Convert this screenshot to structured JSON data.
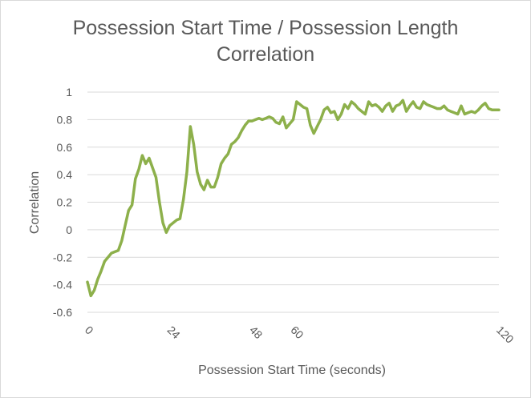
{
  "chart_data": {
    "type": "line",
    "title_line1": "Possession  Start  Time  /  Possession  Length",
    "title_line2": "Correlation",
    "xlabel": "Possession Start Time (seconds)",
    "ylabel": "Correlation",
    "xlim": [
      0,
      120
    ],
    "ylim": [
      -0.6,
      1
    ],
    "y_ticks": [
      "1",
      "0.8",
      "0.6",
      "0.4",
      "0.2",
      "0",
      "-0.2",
      "-0.4",
      "-0.6"
    ],
    "y_tick_values": [
      1,
      0.8,
      0.6,
      0.4,
      0.2,
      0,
      -0.2,
      -0.4,
      -0.6
    ],
    "x_ticks": [
      "0",
      "24",
      "48",
      "60",
      "120"
    ],
    "x_tick_values": [
      0,
      24,
      48,
      60,
      120
    ],
    "grid": "horizontal",
    "legend": "none",
    "series_color": "#8db04b",
    "grid_color": "#d9d9d9",
    "text_color": "#595959",
    "series": [
      {
        "x": [
          0,
          1,
          2,
          3,
          4,
          5,
          6,
          7,
          8,
          9,
          10,
          11,
          12,
          13,
          14,
          15,
          16,
          17,
          18,
          19,
          20,
          21,
          22,
          23,
          24,
          25,
          26,
          27,
          28,
          29,
          30,
          31,
          32,
          33,
          34,
          35,
          36,
          37,
          38,
          39,
          40,
          41,
          42,
          43,
          44,
          45,
          46,
          47,
          48,
          49,
          50,
          51,
          52,
          53,
          54,
          55,
          56,
          57,
          58,
          59,
          60,
          61,
          62,
          63,
          64,
          65,
          66,
          67,
          68,
          69,
          70,
          71,
          72,
          73,
          74,
          75,
          76,
          77,
          78,
          79,
          80,
          81,
          82,
          83,
          84,
          85,
          86,
          87,
          88,
          89,
          90,
          91,
          92,
          93,
          94,
          95,
          96,
          97,
          98,
          99,
          100,
          101,
          102,
          103,
          104,
          105,
          106,
          107,
          108,
          109,
          110,
          111,
          112,
          113,
          114,
          115,
          116,
          117,
          118,
          119,
          120
        ],
        "values": [
          -0.38,
          -0.48,
          -0.44,
          -0.36,
          -0.3,
          -0.23,
          -0.2,
          -0.17,
          -0.16,
          -0.15,
          -0.08,
          0.03,
          0.14,
          0.18,
          0.37,
          0.44,
          0.54,
          0.48,
          0.52,
          0.45,
          0.38,
          0.2,
          0.05,
          -0.02,
          0.03,
          0.05,
          0.07,
          0.08,
          0.22,
          0.42,
          0.75,
          0.62,
          0.42,
          0.33,
          0.29,
          0.36,
          0.31,
          0.31,
          0.38,
          0.48,
          0.52,
          0.55,
          0.62,
          0.64,
          0.67,
          0.72,
          0.76,
          0.79,
          0.79,
          0.8,
          0.81,
          0.8,
          0.81,
          0.82,
          0.81,
          0.78,
          0.77,
          0.82,
          0.74,
          0.77,
          0.8,
          0.93,
          0.91,
          0.89,
          0.88,
          0.76,
          0.7,
          0.75,
          0.8,
          0.87,
          0.89,
          0.85,
          0.86,
          0.8,
          0.84,
          0.91,
          0.88,
          0.93,
          0.91,
          0.88,
          0.86,
          0.84,
          0.93,
          0.9,
          0.91,
          0.89,
          0.86,
          0.9,
          0.92,
          0.86,
          0.9,
          0.91,
          0.94,
          0.86,
          0.9,
          0.93,
          0.89,
          0.88,
          0.93,
          0.91,
          0.9,
          0.89,
          0.88,
          0.88,
          0.9,
          0.87,
          0.86,
          0.85,
          0.84,
          0.9,
          0.84,
          0.85,
          0.86,
          0.85,
          0.87,
          0.9,
          0.92,
          0.88,
          0.87,
          0.87,
          0.87
        ]
      }
    ]
  }
}
